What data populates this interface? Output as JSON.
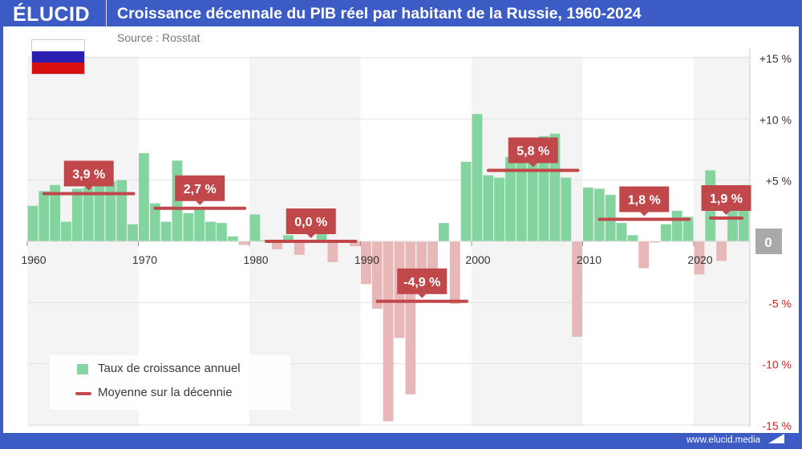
{
  "header": {
    "logo": "ÉLUCID",
    "title": "Croissance décennale du PIB réel par habitant de la Russie, 1960-2024",
    "source": "Source : Rosstat",
    "site": "www.elucid.media"
  },
  "flag": {
    "name": "Russia",
    "colors": [
      "#ffffff",
      "#2a1fb0",
      "#d80f0f"
    ]
  },
  "legend": {
    "bars": "Taux de croissance annuel",
    "line": "Moyenne sur la décennie"
  },
  "chart_data": {
    "type": "bar",
    "title": "Croissance décennale du PIB réel par habitant de la Russie, 1960-2024",
    "ylim": [
      -15,
      15
    ],
    "y_ticks": [
      {
        "v": 15,
        "label": "+15 %"
      },
      {
        "v": 10,
        "label": "+10 %"
      },
      {
        "v": 5,
        "label": "+5 %"
      },
      {
        "v": 0,
        "label": "0"
      },
      {
        "v": -5,
        "label": "-5 %"
      },
      {
        "v": -10,
        "label": "-10 %"
      },
      {
        "v": -15,
        "label": "-15 %"
      }
    ],
    "x_ticks": [
      "1960",
      "1970",
      "1980",
      "1990",
      "2000",
      "2010",
      "2020"
    ],
    "grid": true,
    "legend_position": "bottom-left",
    "colors": {
      "positive": "#84d4a0",
      "negative": "#e8b7b7",
      "average": "#c0474a",
      "zero_box": "#a9a9a9",
      "negative_tick": "#d42020"
    },
    "series": [
      {
        "name": "Taux de croissance annuel",
        "years": [
          1960,
          1961,
          1962,
          1963,
          1964,
          1965,
          1966,
          1967,
          1968,
          1969,
          1970,
          1971,
          1972,
          1973,
          1974,
          1975,
          1976,
          1977,
          1978,
          1979,
          1980,
          1981,
          1982,
          1983,
          1984,
          1985,
          1986,
          1987,
          1988,
          1989,
          1990,
          1991,
          1992,
          1993,
          1994,
          1995,
          1996,
          1997,
          1998,
          1999,
          2000,
          2001,
          2002,
          2003,
          2004,
          2005,
          2006,
          2007,
          2008,
          2009,
          2010,
          2011,
          2012,
          2013,
          2014,
          2015,
          2016,
          2017,
          2018,
          2019,
          2020,
          2021,
          2022,
          2023,
          2024
        ],
        "values": [
          2.9,
          4.1,
          4.6,
          1.6,
          4.3,
          4.4,
          4.8,
          4.9,
          5.0,
          1.4,
          7.2,
          3.1,
          1.6,
          6.6,
          2.3,
          2.6,
          1.6,
          1.5,
          0.4,
          -0.3,
          2.2,
          0.1,
          -0.65,
          0.5,
          -1.1,
          0.0,
          0.9,
          -1.7,
          0.0,
          -0.4,
          -3.5,
          -5.5,
          -14.7,
          -7.9,
          -12.5,
          -4.0,
          -3.5,
          1.5,
          -5.1,
          6.5,
          10.4,
          5.4,
          5.2,
          6.9,
          7.2,
          6.7,
          8.6,
          8.8,
          5.2,
          -7.8,
          4.4,
          4.3,
          3.8,
          1.5,
          0.5,
          -2.2,
          -0.1,
          1.4,
          2.5,
          2.0,
          -2.7,
          5.8,
          -1.6,
          3.9,
          4.6
        ]
      },
      {
        "name": "Moyenne sur la décennie",
        "decades": [
          {
            "start": 1960,
            "end": 1969,
            "value": 3.9,
            "label": "3,9 %"
          },
          {
            "start": 1970,
            "end": 1979,
            "value": 2.7,
            "label": "2,7 %"
          },
          {
            "start": 1980,
            "end": 1989,
            "value": 0.0,
            "label": "0,0 %"
          },
          {
            "start": 1990,
            "end": 1999,
            "value": -4.9,
            "label": "-4,9 %"
          },
          {
            "start": 2000,
            "end": 2009,
            "value": 5.8,
            "label": "5,8 %"
          },
          {
            "start": 2010,
            "end": 2019,
            "value": 1.8,
            "label": "1,8 %"
          },
          {
            "start": 2020,
            "end": 2024,
            "value": 1.9,
            "label": "1,9 %"
          }
        ]
      }
    ]
  }
}
